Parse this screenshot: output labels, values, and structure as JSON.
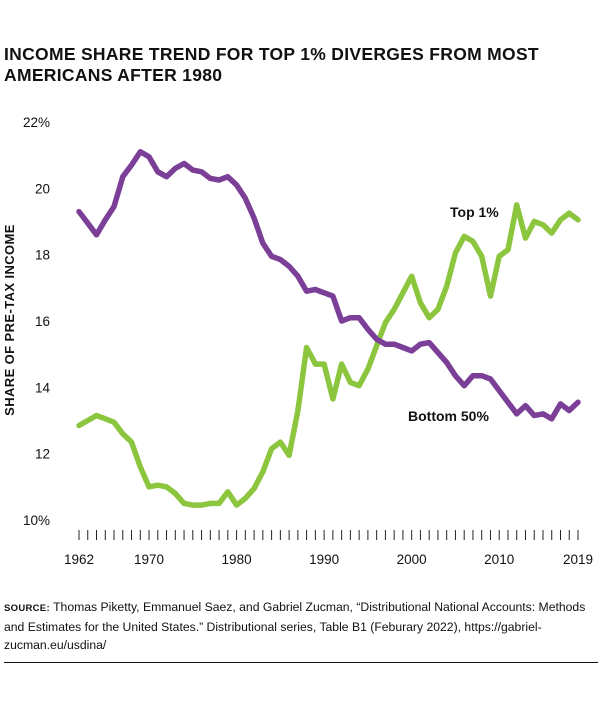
{
  "chart_data": {
    "type": "line",
    "title": "INCOME SHARE TREND FOR TOP 1% DIVERGES FROM MOST AMERICANS AFTER 1980",
    "xlabel": "",
    "ylabel": "SHARE OF PRE-TAX INCOME",
    "xlim": [
      1962,
      2019
    ],
    "ylim": [
      10,
      22
    ],
    "x_tick_labels": [
      "1962",
      "1970",
      "1980",
      "1990",
      "2000",
      "2010",
      "2019"
    ],
    "y_tick_labels": [
      "10%",
      "12",
      "14",
      "16",
      "18",
      "20",
      "22%"
    ],
    "x": [
      1962,
      1963,
      1964,
      1965,
      1966,
      1967,
      1968,
      1969,
      1970,
      1971,
      1972,
      1973,
      1974,
      1975,
      1976,
      1977,
      1978,
      1979,
      1980,
      1981,
      1982,
      1983,
      1984,
      1985,
      1986,
      1987,
      1988,
      1989,
      1990,
      1991,
      1992,
      1993,
      1994,
      1995,
      1996,
      1997,
      1998,
      1999,
      2000,
      2001,
      2002,
      2003,
      2004,
      2005,
      2006,
      2007,
      2008,
      2009,
      2010,
      2011,
      2012,
      2013,
      2014,
      2015,
      2016,
      2017,
      2018,
      2019
    ],
    "series": [
      {
        "name": "Top 1%",
        "color": "#8cc63f",
        "values": [
          12.85,
          13.0,
          13.15,
          13.05,
          12.95,
          12.6,
          12.35,
          11.6,
          11.0,
          11.05,
          11.0,
          10.8,
          10.5,
          10.45,
          10.45,
          10.5,
          10.5,
          10.85,
          10.45,
          10.65,
          10.95,
          11.45,
          12.15,
          12.35,
          11.95,
          13.3,
          15.2,
          14.7,
          14.7,
          13.65,
          14.7,
          14.15,
          14.05,
          14.55,
          15.25,
          15.95,
          16.35,
          16.85,
          17.35,
          16.55,
          16.1,
          16.35,
          17.05,
          18.05,
          18.55,
          18.4,
          17.95,
          16.75,
          17.95,
          18.15,
          19.5,
          18.5,
          19.0,
          18.9,
          18.65,
          19.05,
          19.25,
          19.05
        ]
      },
      {
        "name": "Bottom 50%",
        "color": "#7b3f98",
        "values": [
          19.3,
          18.95,
          18.6,
          19.05,
          19.45,
          20.35,
          20.7,
          21.1,
          20.95,
          20.5,
          20.35,
          20.6,
          20.75,
          20.55,
          20.5,
          20.3,
          20.25,
          20.35,
          20.1,
          19.7,
          19.1,
          18.35,
          17.95,
          17.85,
          17.65,
          17.35,
          16.9,
          16.95,
          16.85,
          16.75,
          16.0,
          16.1,
          16.1,
          15.75,
          15.45,
          15.3,
          15.3,
          15.2,
          15.1,
          15.3,
          15.35,
          15.05,
          14.75,
          14.35,
          14.05,
          14.35,
          14.35,
          14.25,
          13.9,
          13.55,
          13.2,
          13.45,
          13.15,
          13.2,
          13.05,
          13.5,
          13.3,
          13.55
        ]
      }
    ],
    "grid": false,
    "legend": "inline labels"
  },
  "source": {
    "label": "SOURCE:",
    "text": "Thomas Piketty, Emmanuel Saez, and Gabriel Zucman, “Distributional National Accounts: Methods and Estimates for the United States.” Distributional series, Table B1 (Feburary 2022), https://gabriel-zucman.eu/usdina/"
  }
}
